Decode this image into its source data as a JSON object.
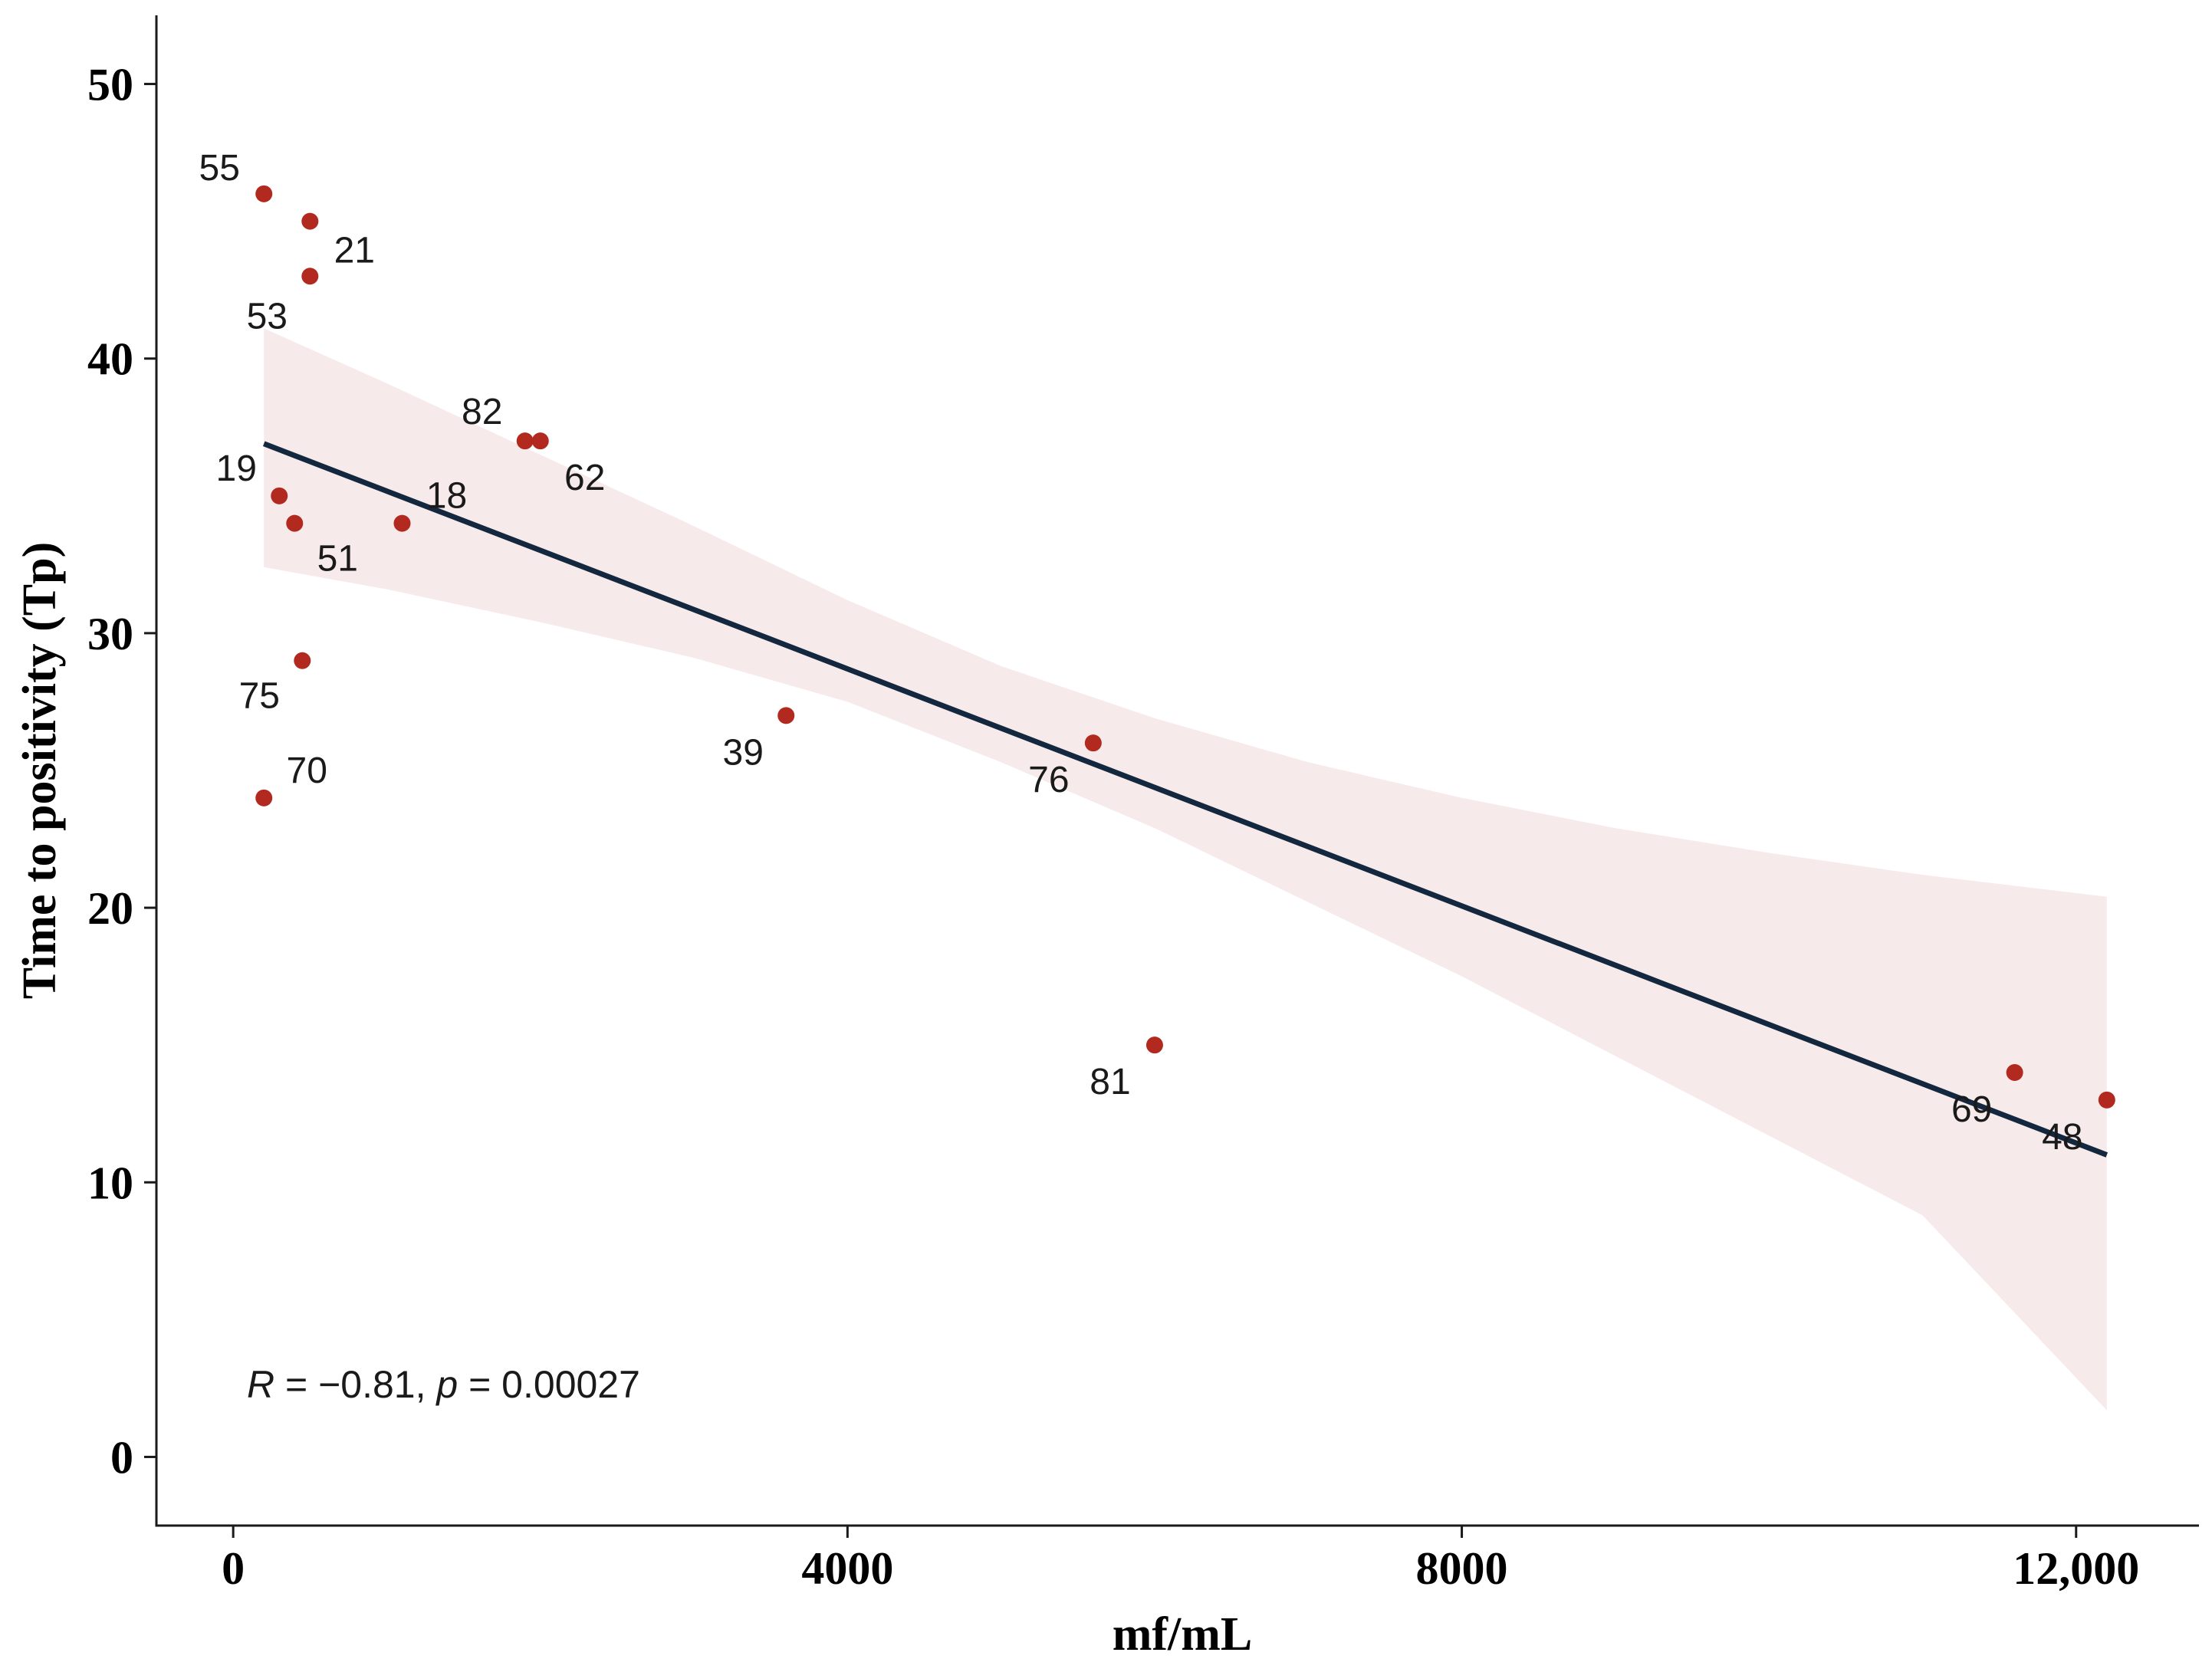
{
  "chart_data": {
    "type": "scatter",
    "title": "",
    "xlabel": "mf/mL",
    "ylabel": "Time to positivity (Tp)",
    "xlim": [
      -500,
      12800
    ],
    "ylim": [
      -2.5,
      52.5
    ],
    "x_ticks": [
      0,
      4000,
      8000,
      12000
    ],
    "x_tick_labels": [
      "0",
      "4000",
      "8000",
      "12,000"
    ],
    "y_ticks": [
      0,
      10,
      20,
      30,
      40,
      50
    ],
    "y_tick_labels": [
      "0",
      "10",
      "20",
      "30",
      "40",
      "50"
    ],
    "grid": false,
    "series": [
      {
        "name": "samples",
        "color": "#b22a1f",
        "points": [
          {
            "id": "55",
            "x": 200,
            "y": 46
          },
          {
            "id": "21",
            "x": 500,
            "y": 45
          },
          {
            "id": "53",
            "x": 500,
            "y": 43
          },
          {
            "id": "82",
            "x": 1900,
            "y": 37
          },
          {
            "id": "62",
            "x": 2000,
            "y": 37
          },
          {
            "id": "19",
            "x": 300,
            "y": 35
          },
          {
            "id": "18",
            "x": 1100,
            "y": 34
          },
          {
            "id": "51",
            "x": 400,
            "y": 34
          },
          {
            "id": "75",
            "x": 450,
            "y": 29
          },
          {
            "id": "39",
            "x": 3600,
            "y": 27
          },
          {
            "id": "76",
            "x": 5600,
            "y": 26
          },
          {
            "id": "70",
            "x": 200,
            "y": 24
          },
          {
            "id": "81",
            "x": 6000,
            "y": 15
          },
          {
            "id": "69",
            "x": 11600,
            "y": 14
          },
          {
            "id": "48",
            "x": 12200,
            "y": 13
          }
        ]
      }
    ],
    "regression": {
      "color": "#13283e",
      "band_color": "#f7eaea",
      "line": [
        {
          "x": 200,
          "y": 36.9
        },
        {
          "x": 12200,
          "y": 11.0
        }
      ],
      "band": [
        {
          "x": 200,
          "lower": 32.4,
          "upper": 41.1
        },
        {
          "x": 1000,
          "lower": 31.6,
          "upper": 39.1
        },
        {
          "x": 2000,
          "lower": 30.4,
          "upper": 36.5
        },
        {
          "x": 3000,
          "lower": 29.1,
          "upper": 33.9
        },
        {
          "x": 4000,
          "lower": 27.5,
          "upper": 31.2
        },
        {
          "x": 5000,
          "lower": 25.3,
          "upper": 28.8
        },
        {
          "x": 6000,
          "lower": 22.9,
          "upper": 26.9
        },
        {
          "x": 7000,
          "lower": 20.2,
          "upper": 25.3
        },
        {
          "x": 8000,
          "lower": 17.5,
          "upper": 24.0
        },
        {
          "x": 9000,
          "lower": 14.6,
          "upper": 22.9
        },
        {
          "x": 10000,
          "lower": 11.7,
          "upper": 22.0
        },
        {
          "x": 11000,
          "lower": 8.8,
          "upper": 21.2
        },
        {
          "x": 12200,
          "lower": 1.7,
          "upper": 20.4
        }
      ]
    },
    "annotation": {
      "r_symbol": "R",
      "r_text": " = −0.81, ",
      "p_symbol": "p",
      "p_text": " = 0.00027"
    }
  }
}
